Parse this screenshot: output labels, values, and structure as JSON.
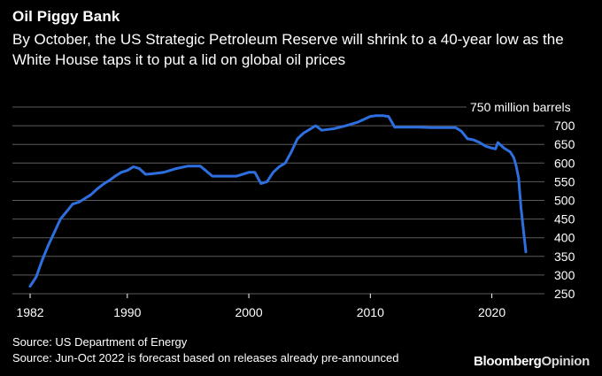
{
  "title": "Oil Piggy Bank",
  "subtitle": "By October, the US Strategic Petroleum Reserve will shrink to a 40-year low as the White House taps it to put a lid on global oil prices",
  "sources": [
    "Source: US Department of Energy",
    "Source: Jun-Oct 2022 is forecast based on releases already pre-announced"
  ],
  "brand": {
    "part1": "Bloomberg",
    "part2": "Opinion"
  },
  "colors": {
    "background": "#000000",
    "line": "#2e6fe0",
    "grid": "#5c5c5c",
    "text": "#ffffff"
  },
  "chart_data": {
    "type": "line",
    "unit_label": "750 million barrels",
    "ylim": [
      250,
      750
    ],
    "xlim": [
      1982,
      2022.8
    ],
    "y_ticks": [
      750,
      700,
      650,
      600,
      550,
      500,
      450,
      400,
      350,
      300,
      250
    ],
    "y_tick_labels": [
      "",
      "700",
      "650",
      "600",
      "550",
      "500",
      "450",
      "400",
      "350",
      "300",
      "250"
    ],
    "x_ticks": [
      1982,
      1990,
      2000,
      2010,
      2020
    ],
    "x_tick_labels": [
      "1982",
      "1990",
      "2000",
      "2010",
      "2020"
    ],
    "grid": true,
    "series": [
      {
        "x": [
          1982,
          1982.5,
          1983,
          1983.5,
          1984,
          1984.5,
          1985,
          1985.5,
          1986,
          1986.5,
          1987,
          1987.5,
          1988,
          1988.5,
          1989,
          1989.5,
          1990,
          1990.5,
          1991,
          1991.5,
          1992,
          1993,
          1994,
          1995,
          1996,
          1997,
          1998,
          1999,
          2000,
          2000.5,
          2001,
          2001.5,
          2002,
          2002.5,
          2003,
          2003.5,
          2004,
          2004.5,
          2005,
          2005.5,
          2006,
          2006.5,
          2007,
          2008,
          2009,
          2010,
          2010.5,
          2011,
          2011.5,
          2012,
          2013,
          2014,
          2015,
          2016,
          2017,
          2017.5,
          2018,
          2018.5,
          2019,
          2019.5,
          2020,
          2020.3,
          2020.5,
          2021,
          2021.5,
          2021.8,
          2022,
          2022.2,
          2022.4,
          2022.6,
          2022.8
        ],
        "y": [
          270,
          295,
          340,
          380,
          415,
          450,
          470,
          490,
          495,
          505,
          515,
          530,
          543,
          553,
          565,
          575,
          580,
          590,
          585,
          570,
          571,
          575,
          585,
          592,
          592,
          565,
          565,
          565,
          575,
          575,
          545,
          550,
          575,
          590,
          600,
          630,
          665,
          680,
          690,
          700,
          688,
          690,
          692,
          700,
          710,
          725,
          727,
          727,
          725,
          696,
          696,
          696,
          695,
          695,
          695,
          685,
          665,
          662,
          655,
          645,
          640,
          638,
          655,
          640,
          630,
          615,
          593,
          560,
          480,
          420,
          362
        ]
      }
    ]
  }
}
